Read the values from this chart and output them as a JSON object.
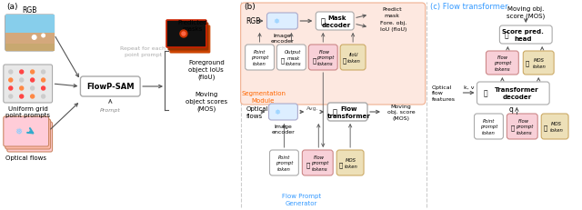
{
  "bg_color": "#ffffff",
  "panel_a_label": "(a)",
  "panel_b_label": "(b)",
  "panel_c_label": "(c) Flow transformer",
  "colors": {
    "seg_module_bg": "#fde8e0",
    "seg_module_border": "#f0b090",
    "box_white": "#ffffff",
    "box_blue": "#ddeeff",
    "box_pink": "#f8d0d8",
    "box_tan": "#ede0b8",
    "box_gray": "#e8e8e8",
    "arrow": "#555555",
    "text_orange": "#ff6600",
    "text_blue": "#3399ff",
    "text_gray": "#aaaaaa",
    "border": "#aaaaaa",
    "border_pink": "#cc8888",
    "border_tan": "#ccaa66",
    "border_blue": "#aaaacc",
    "divider": "#cccccc"
  }
}
